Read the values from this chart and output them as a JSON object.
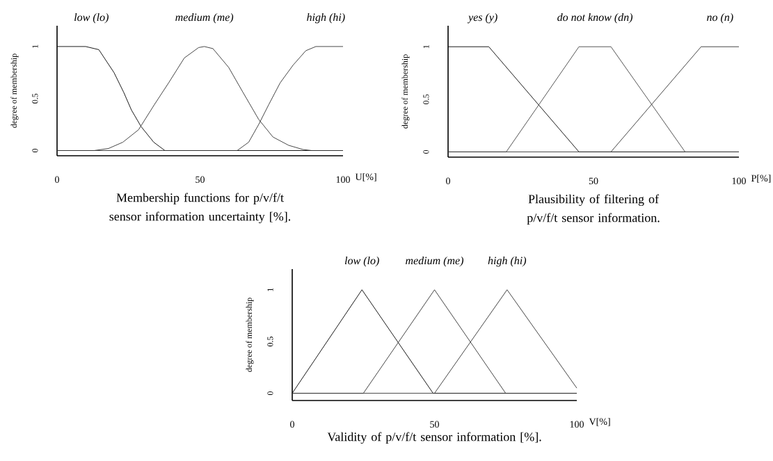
{
  "chart_data": [
    {
      "type": "line",
      "title": "Membership functions for  p/v/f/t sensor information uncertainty [%].",
      "xlabel": "U[%]",
      "ylabel": "degree of membership",
      "xlim": [
        0,
        100
      ],
      "ylim": [
        -0.05,
        1.2
      ],
      "xticks": [
        0,
        50,
        100
      ],
      "yticks": [
        0,
        0.5,
        1
      ],
      "marker": "none",
      "legend": false,
      "series": [
        {
          "name": "low (lo)",
          "color": "#000000",
          "x": [
            0,
            10,
            14.6,
            19.9,
            23.3,
            26,
            29.4,
            33.8,
            37.7,
            100
          ],
          "values": [
            1,
            1,
            0.97,
            0.75,
            0.56,
            0.39,
            0.23,
            0.08,
            0,
            0
          ]
        },
        {
          "name": "medium (me)",
          "color": "#333333",
          "x": [
            0,
            13,
            18,
            23,
            28.5,
            34,
            39,
            44.5,
            49.5,
            51.5,
            54.5,
            60,
            65,
            70.5,
            75.5,
            81,
            86,
            89,
            100
          ],
          "values": [
            0,
            0,
            0.02,
            0.08,
            0.2,
            0.44,
            0.65,
            0.89,
            0.99,
            1,
            0.98,
            0.8,
            0.56,
            0.3,
            0.13,
            0.05,
            0.01,
            0,
            0
          ]
        },
        {
          "name": "high (hi)",
          "color": "#333333",
          "x": [
            0,
            63,
            67,
            70.5,
            74,
            78,
            82.5,
            87,
            90.5,
            100
          ],
          "values": [
            0,
            0,
            0.08,
            0.25,
            0.44,
            0.65,
            0.82,
            0.96,
            1,
            1
          ]
        }
      ]
    },
    {
      "type": "line",
      "title": "Plausibility of filtering of p/v/f/t sensor information.",
      "xlabel": "P[%]",
      "ylabel": "degree of membership",
      "xlim": [
        0,
        100
      ],
      "ylim": [
        -0.05,
        1.2
      ],
      "xticks": [
        0,
        50,
        100
      ],
      "yticks": [
        0,
        0.5,
        1
      ],
      "marker": "none",
      "legend": false,
      "series": [
        {
          "name": "yes (y)",
          "color": "#000000",
          "x": [
            0,
            14,
            45,
            100
          ],
          "values": [
            1,
            1,
            0,
            0
          ]
        },
        {
          "name": "do not know (dn)",
          "color": "#444444",
          "x": [
            0,
            20,
            45,
            56,
            81.5,
            100
          ],
          "values": [
            0,
            0,
            1,
            1,
            0,
            0
          ]
        },
        {
          "name": "no (n)",
          "color": "#333333",
          "x": [
            0,
            56,
            87,
            100
          ],
          "values": [
            0,
            0,
            1,
            1
          ]
        }
      ]
    },
    {
      "type": "line",
      "title": "Validity of p/v/f/t sensor information [%].",
      "xlabel": "V[%]",
      "ylabel": "degree of membership",
      "xlim": [
        0,
        100
      ],
      "ylim": [
        -0.07,
        1.2
      ],
      "xticks": [
        0,
        50,
        100
      ],
      "yticks": [
        0,
        0.5,
        1
      ],
      "marker": "none",
      "legend": false,
      "series": [
        {
          "name": "low (lo)",
          "color": "#000000",
          "x": [
            0,
            24.5,
            49.5,
            100
          ],
          "values": [
            0,
            1,
            0,
            0
          ]
        },
        {
          "name": "medium (me)",
          "color": "#333333",
          "x": [
            0,
            25,
            50,
            75,
            100
          ],
          "values": [
            0,
            0,
            1,
            0,
            0
          ]
        },
        {
          "name": "high (hi)",
          "color": "#333333",
          "x": [
            0,
            50,
            75.5,
            100
          ],
          "values": [
            0,
            0,
            1,
            0.05
          ]
        }
      ]
    }
  ]
}
